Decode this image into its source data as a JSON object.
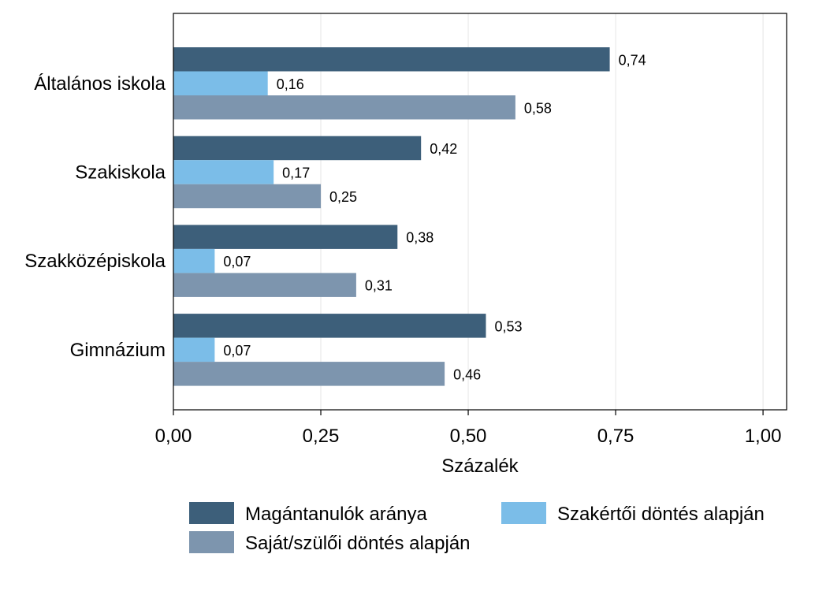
{
  "chart_data": {
    "type": "bar",
    "orientation": "horizontal",
    "categories": [
      "Általános iskola",
      "Szakiskola",
      "Szakközépiskola",
      "Gimnázium"
    ],
    "series": [
      {
        "name": "Magántanulók aránya",
        "values": [
          0.74,
          0.42,
          0.38,
          0.53
        ],
        "color": "#3d5f7a"
      },
      {
        "name": "Szakértői döntés alapján",
        "values": [
          0.16,
          0.17,
          0.07,
          0.07
        ],
        "color": "#7bbde8"
      },
      {
        "name": "Saját/szülői döntés alapján",
        "values": [
          0.58,
          0.25,
          0.31,
          0.46
        ],
        "color": "#7d95ae"
      }
    ],
    "value_labels": [
      [
        "0,74",
        "0,16",
        "0,58"
      ],
      [
        "0,42",
        "0,17",
        "0,25"
      ],
      [
        "0,38",
        "0,07",
        "0,31"
      ],
      [
        "0,53",
        "0,07",
        "0,46"
      ]
    ],
    "xlabel": "Százalék",
    "ylabel": "",
    "xlim": [
      0,
      1.04
    ],
    "xticks": [
      0,
      0.25,
      0.5,
      0.75,
      1.0
    ],
    "xtick_labels": [
      "0,00",
      "0,25",
      "0,50",
      "0,75",
      "1,00"
    ],
    "grid": "vertical",
    "legend": {
      "position": "bottom",
      "entries": [
        {
          "label": "Magántanulók aránya",
          "color": "#3d5f7a"
        },
        {
          "label": "Szakértői döntés alapján",
          "color": "#7bbde8"
        },
        {
          "label": "Saját/szülői döntés alapján",
          "color": "#7d95ae"
        }
      ]
    }
  }
}
